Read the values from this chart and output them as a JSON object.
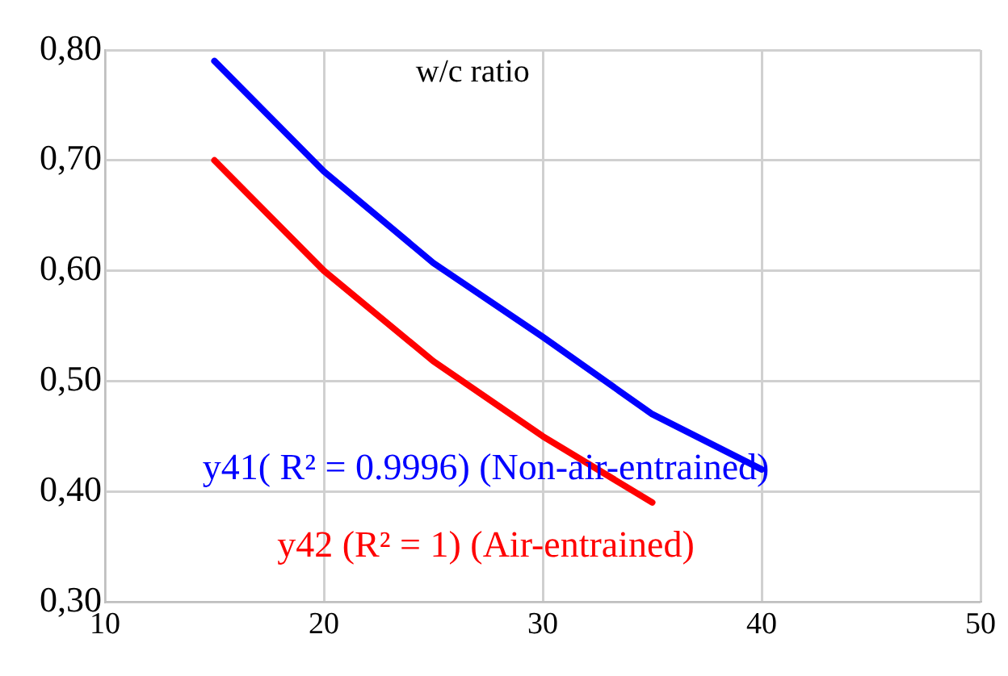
{
  "chart_data": {
    "type": "line",
    "title": "w/c ratio",
    "x": [
      15,
      20,
      25,
      30,
      35,
      40
    ],
    "series": [
      {
        "color": "#0000ff",
        "values": [
          0.79,
          0.69,
          0.607,
          0.54,
          0.47,
          0.42
        ]
      },
      {
        "color": "#ff0000",
        "values": [
          0.7,
          0.6,
          0.518,
          0.45,
          0.39,
          null
        ]
      }
    ],
    "xlim": [
      10,
      50
    ],
    "xticks": [
      10,
      20,
      30,
      40,
      50
    ],
    "ylim": [
      0.3,
      0.8
    ],
    "yticks": [
      {
        "value": 0.3,
        "label": "0,30"
      },
      {
        "value": 0.4,
        "label": "0,40"
      },
      {
        "value": 0.5,
        "label": "0,50"
      },
      {
        "value": 0.6,
        "label": "0,60"
      },
      {
        "value": 0.7,
        "label": "0,70"
      },
      {
        "value": 0.8,
        "label": "0,80"
      }
    ],
    "grid": true,
    "legend": false,
    "marker": "none",
    "line_style": "solid",
    "annotations": [
      "y41( R² = 0.9996) (Non-air-entrained)",
      "y42 (R² = 1) (Air-entrained)"
    ]
  }
}
